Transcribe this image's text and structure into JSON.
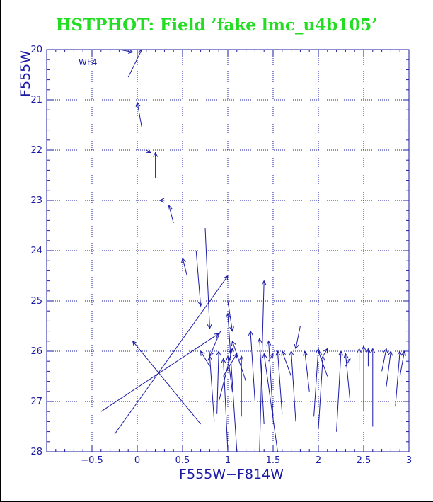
{
  "chart_data": {
    "type": "scatter",
    "title": "HSTPHOT: Field ’fake lmc_u4b105’",
    "xlabel": "F555W−F814W",
    "ylabel": "F555W",
    "xlim": [
      -1.0,
      3.0
    ],
    "ylim": [
      28,
      20
    ],
    "x_ticks": [
      -0.5,
      0,
      0.5,
      1,
      1.5,
      2,
      2.5,
      3
    ],
    "x_tick_labels": [
      "−0.5",
      "0",
      "0.5",
      "1",
      "1.5",
      "2",
      "2.5",
      "3"
    ],
    "y_ticks": [
      20,
      21,
      22,
      23,
      24,
      25,
      26,
      27,
      28
    ],
    "y_tick_labels": [
      "20",
      "21",
      "22",
      "23",
      "24",
      "25",
      "26",
      "27",
      "28"
    ],
    "grid_x": [
      -0.5,
      0,
      0.5,
      1,
      1.5,
      2,
      2.5
    ],
    "grid_y": [
      21,
      22,
      23,
      24,
      25,
      26,
      27
    ],
    "grid": true,
    "annotation": "WF4",
    "colors": {
      "title": "#22dd22",
      "axes": "#1a1aa6",
      "vectors": "#1a1aa6"
    },
    "series": [
      {
        "kind": "vectors",
        "x0": [
          -0.4,
          -0.25,
          -0.2,
          -0.1,
          0.0,
          0.05,
          0.1,
          0.2,
          0.3,
          0.4,
          0.55,
          0.65,
          0.7,
          0.75,
          0.8,
          0.85,
          0.88,
          0.9,
          0.92,
          0.95,
          1.0,
          1.0,
          1.05,
          1.1,
          1.15,
          1.2,
          1.3,
          1.35,
          1.4,
          1.45,
          1.5,
          1.55,
          1.6,
          1.7,
          1.75,
          1.8,
          1.9,
          1.95,
          2.0,
          2.05,
          2.1,
          2.2,
          2.3,
          2.35,
          2.45,
          2.5,
          2.55,
          2.6,
          2.7,
          2.75,
          2.85,
          2.9
        ],
        "y0": [
          27.2,
          27.65,
          20.0,
          20.55,
          21.0,
          21.55,
          22.0,
          22.55,
          23.0,
          23.45,
          24.5,
          24.0,
          27.45,
          23.55,
          26.3,
          27.4,
          27.25,
          27.0,
          25.6,
          26.5,
          28.0,
          25.0,
          26.8,
          28.0,
          27.3,
          26.6,
          27.0,
          28.0,
          27.45,
          26.2,
          27.3,
          28.0,
          27.25,
          26.5,
          27.4,
          25.5,
          26.8,
          27.3,
          27.55,
          26.1,
          26.5,
          27.6,
          26.3,
          27.0,
          26.4,
          27.2,
          26.3,
          27.5,
          26.4,
          26.7,
          27.1,
          26.5
        ],
        "x1": [
          0.9,
          1.0,
          -0.05,
          0.05,
          0.0,
          0.0,
          0.15,
          0.2,
          0.25,
          0.35,
          0.5,
          0.7,
          -0.05,
          0.8,
          0.7,
          0.8,
          0.9,
          1.05,
          0.8,
          1.1,
          0.95,
          1.05,
          1.0,
          1.0,
          1.15,
          1.05,
          1.25,
          1.4,
          1.35,
          1.5,
          1.45,
          1.4,
          1.55,
          1.6,
          1.7,
          1.75,
          1.85,
          2.0,
          2.05,
          2.1,
          2.0,
          2.25,
          2.35,
          2.3,
          2.45,
          2.5,
          2.55,
          2.6,
          2.75,
          2.8,
          2.9,
          2.95
        ],
        "y1": [
          25.65,
          24.5,
          20.05,
          20.0,
          21.0,
          21.05,
          22.05,
          22.05,
          23.0,
          23.1,
          24.15,
          25.1,
          25.8,
          25.55,
          26.0,
          26.1,
          26.0,
          25.95,
          26.1,
          26.05,
          26.15,
          25.6,
          26.1,
          25.25,
          26.1,
          25.8,
          25.6,
          24.6,
          25.75,
          26.05,
          25.8,
          26.05,
          26.0,
          26.0,
          26.0,
          25.95,
          26.0,
          25.95,
          26.1,
          25.95,
          26.0,
          26.0,
          26.15,
          26.05,
          25.95,
          25.9,
          25.95,
          25.95,
          25.95,
          26.0,
          26.0,
          26.0
        ]
      }
    ]
  }
}
